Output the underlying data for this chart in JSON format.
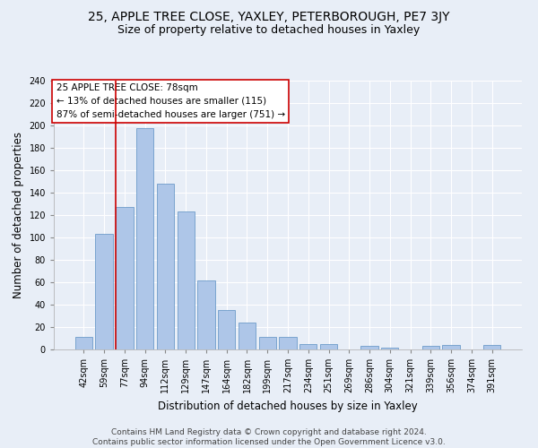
{
  "title": "25, APPLE TREE CLOSE, YAXLEY, PETERBOROUGH, PE7 3JY",
  "subtitle": "Size of property relative to detached houses in Yaxley",
  "xlabel": "Distribution of detached houses by size in Yaxley",
  "ylabel": "Number of detached properties",
  "categories": [
    "42sqm",
    "59sqm",
    "77sqm",
    "94sqm",
    "112sqm",
    "129sqm",
    "147sqm",
    "164sqm",
    "182sqm",
    "199sqm",
    "217sqm",
    "234sqm",
    "251sqm",
    "269sqm",
    "286sqm",
    "304sqm",
    "321sqm",
    "339sqm",
    "356sqm",
    "374sqm",
    "391sqm"
  ],
  "values": [
    11,
    103,
    127,
    198,
    148,
    123,
    62,
    35,
    24,
    11,
    11,
    5,
    5,
    0,
    3,
    2,
    0,
    3,
    4,
    0,
    4
  ],
  "bar_color": "#aec6e8",
  "bar_edge_color": "#5a8fc2",
  "vline_x_index": 2,
  "vline_color": "#cc0000",
  "annotation_text": "25 APPLE TREE CLOSE: 78sqm\n← 13% of detached houses are smaller (115)\n87% of semi-detached houses are larger (751) →",
  "annotation_box_color": "#ffffff",
  "annotation_box_edge": "#cc0000",
  "ylim": [
    0,
    240
  ],
  "yticks": [
    0,
    20,
    40,
    60,
    80,
    100,
    120,
    140,
    160,
    180,
    200,
    220,
    240
  ],
  "footer": "Contains HM Land Registry data © Crown copyright and database right 2024.\nContains public sector information licensed under the Open Government Licence v3.0.",
  "bg_color": "#e8eef7",
  "grid_color": "#ffffff",
  "title_fontsize": 10,
  "subtitle_fontsize": 9,
  "axis_label_fontsize": 8.5,
  "tick_fontsize": 7,
  "annotation_fontsize": 7.5,
  "footer_fontsize": 6.5
}
